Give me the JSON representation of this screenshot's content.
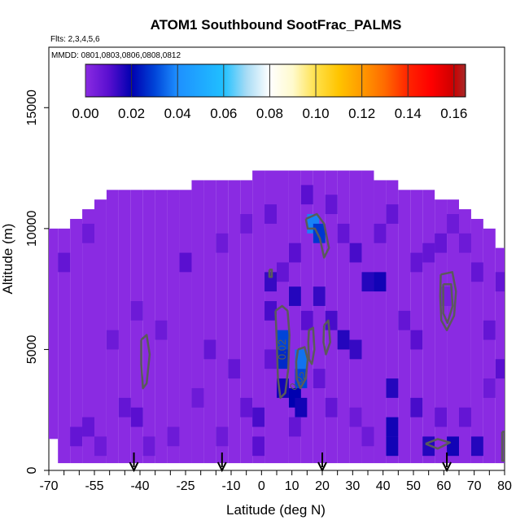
{
  "chart_data": {
    "type": "heatmap",
    "title": "ATOM1 Southbound SootFrac_PALMS",
    "flights_label": "Flts: 2,3,4,5,6",
    "dates_label": "MMDD: 0801,0803,0806,0808,0812",
    "xlabel": "Latitude (deg N)",
    "ylabel": "Altitude (m)",
    "xlim": [
      -70,
      80
    ],
    "ylim": [
      0,
      17500
    ],
    "x_ticks": [
      -70,
      -55,
      -40,
      -25,
      -10,
      0,
      10,
      20,
      30,
      40,
      50,
      60,
      70,
      80
    ],
    "y_ticks": [
      0,
      5000,
      10000,
      15000
    ],
    "colorbar": {
      "ticks": [
        "0.00",
        "0.02",
        "0.04",
        "0.06",
        "0.08",
        "0.10",
        "0.12",
        "0.14",
        "0.16"
      ],
      "range": [
        0,
        0.165
      ],
      "stops": [
        {
          "v": 0.0,
          "c": "#8a2be2"
        },
        {
          "v": 0.01,
          "c": "#5a0fd0"
        },
        {
          "v": 0.02,
          "c": "#0000b0"
        },
        {
          "v": 0.03,
          "c": "#0044d8"
        },
        {
          "v": 0.04,
          "c": "#1e90ff"
        },
        {
          "v": 0.06,
          "c": "#20c0ff"
        },
        {
          "v": 0.07,
          "c": "#a8dcf5"
        },
        {
          "v": 0.08,
          "c": "#ffffff"
        },
        {
          "v": 0.09,
          "c": "#fffacd"
        },
        {
          "v": 0.1,
          "c": "#ffe14a"
        },
        {
          "v": 0.11,
          "c": "#ffc400"
        },
        {
          "v": 0.12,
          "c": "#ff9a00"
        },
        {
          "v": 0.13,
          "c": "#ff6a00"
        },
        {
          "v": 0.14,
          "c": "#ff2400"
        },
        {
          "v": 0.15,
          "c": "#ff0000"
        },
        {
          "v": 0.16,
          "c": "#cc0000"
        },
        {
          "v": 0.165,
          "c": "#a52a2a"
        }
      ]
    },
    "profile_arrow_lats": [
      -42,
      -13,
      20,
      61
    ],
    "contour_labels": [
      {
        "text": "0.02",
        "lat": 8,
        "alt": 5000,
        "angle": -90
      },
      {
        "text": "0.02",
        "lat": 13,
        "alt": 3600,
        "angle": -50
      }
    ],
    "envelope": [
      {
        "lat": -69,
        "lo": 1300,
        "hi": 10000
      },
      {
        "lat": -65,
        "lo": 300,
        "hi": 10000
      },
      {
        "lat": -61,
        "lo": 300,
        "hi": 10400
      },
      {
        "lat": -57,
        "lo": 300,
        "hi": 10800
      },
      {
        "lat": -53,
        "lo": 300,
        "hi": 11200
      },
      {
        "lat": -49,
        "lo": 300,
        "hi": 11600
      },
      {
        "lat": -45,
        "lo": 300,
        "hi": 11600
      },
      {
        "lat": -41,
        "lo": 300,
        "hi": 11600
      },
      {
        "lat": -37,
        "lo": 300,
        "hi": 11600
      },
      {
        "lat": -33,
        "lo": 300,
        "hi": 11600
      },
      {
        "lat": -29,
        "lo": 300,
        "hi": 11600
      },
      {
        "lat": -25,
        "lo": 300,
        "hi": 11600
      },
      {
        "lat": -21,
        "lo": 300,
        "hi": 12000
      },
      {
        "lat": -17,
        "lo": 300,
        "hi": 12000
      },
      {
        "lat": -13,
        "lo": 300,
        "hi": 12000
      },
      {
        "lat": -9,
        "lo": 300,
        "hi": 12000
      },
      {
        "lat": -5,
        "lo": 300,
        "hi": 12000
      },
      {
        "lat": -1,
        "lo": 300,
        "hi": 12400
      },
      {
        "lat": 3,
        "lo": 300,
        "hi": 12400
      },
      {
        "lat": 7,
        "lo": 300,
        "hi": 12400
      },
      {
        "lat": 11,
        "lo": 300,
        "hi": 12400
      },
      {
        "lat": 15,
        "lo": 300,
        "hi": 12400
      },
      {
        "lat": 19,
        "lo": 300,
        "hi": 12400
      },
      {
        "lat": 23,
        "lo": 300,
        "hi": 12400
      },
      {
        "lat": 27,
        "lo": 300,
        "hi": 12400
      },
      {
        "lat": 31,
        "lo": 300,
        "hi": 12400
      },
      {
        "lat": 35,
        "lo": 300,
        "hi": 12400
      },
      {
        "lat": 39,
        "lo": 300,
        "hi": 12000
      },
      {
        "lat": 43,
        "lo": 300,
        "hi": 12000
      },
      {
        "lat": 47,
        "lo": 300,
        "hi": 11600
      },
      {
        "lat": 51,
        "lo": 300,
        "hi": 11600
      },
      {
        "lat": 55,
        "lo": 300,
        "hi": 11600
      },
      {
        "lat": 59,
        "lo": 300,
        "hi": 11200
      },
      {
        "lat": 63,
        "lo": 300,
        "hi": 11200
      },
      {
        "lat": 67,
        "lo": 300,
        "hi": 10800
      },
      {
        "lat": 71,
        "lo": 300,
        "hi": 10400
      },
      {
        "lat": 75,
        "lo": 300,
        "hi": 10000
      },
      {
        "lat": 79,
        "lo": 300,
        "hi": 9200
      }
    ],
    "cells": [
      {
        "lat": 13,
        "alt": 4200,
        "v": 0.042
      },
      {
        "lat": 13,
        "alt": 4600,
        "v": 0.036
      },
      {
        "lat": 13,
        "alt": 3800,
        "v": 0.03
      },
      {
        "lat": 7,
        "alt": 5000,
        "v": 0.032
      },
      {
        "lat": 7,
        "alt": 5400,
        "v": 0.03
      },
      {
        "lat": 7,
        "alt": 4600,
        "v": 0.026
      },
      {
        "lat": 17,
        "alt": 10200,
        "v": 0.038
      },
      {
        "lat": 19,
        "alt": 9800,
        "v": 0.028
      },
      {
        "lat": 61,
        "alt": 7200,
        "v": 0.004
      },
      {
        "lat": 55,
        "alt": 1000,
        "v": 0.016
      },
      {
        "lat": 63,
        "alt": 1000,
        "v": 0.018
      },
      {
        "lat": 71,
        "alt": 1000,
        "v": 0.016
      },
      {
        "lat": 7,
        "alt": 3400,
        "v": 0.018
      },
      {
        "lat": 11,
        "alt": 3000,
        "v": 0.02
      },
      {
        "lat": 13,
        "alt": 2600,
        "v": 0.018
      },
      {
        "lat": 3,
        "alt": 7800,
        "v": 0.014
      },
      {
        "lat": 3,
        "alt": 6600,
        "v": 0.012
      },
      {
        "lat": 11,
        "alt": 7200,
        "v": 0.016
      },
      {
        "lat": 19,
        "alt": 7200,
        "v": 0.014
      },
      {
        "lat": 23,
        "alt": 6200,
        "v": 0.012
      },
      {
        "lat": 27,
        "alt": 5400,
        "v": 0.016
      },
      {
        "lat": 31,
        "alt": 5000,
        "v": 0.014
      },
      {
        "lat": 35,
        "alt": 7800,
        "v": 0.016
      },
      {
        "lat": 39,
        "alt": 7800,
        "v": 0.018
      },
      {
        "lat": 43,
        "alt": 3400,
        "v": 0.016
      },
      {
        "lat": 43,
        "alt": 1800,
        "v": 0.018
      },
      {
        "lat": 43,
        "alt": 1000,
        "v": 0.018
      },
      {
        "lat": 47,
        "alt": 6200,
        "v": 0.008
      },
      {
        "lat": 51,
        "alt": 5400,
        "v": 0.01
      },
      {
        "lat": 51,
        "alt": 2600,
        "v": 0.012
      },
      {
        "lat": 59,
        "alt": 2200,
        "v": 0.008
      },
      {
        "lat": 67,
        "alt": 2200,
        "v": 0.008
      },
      {
        "lat": 75,
        "alt": 5800,
        "v": 0.008
      },
      {
        "lat": 79,
        "alt": 4200,
        "v": 0.01
      },
      {
        "lat": 79,
        "alt": 7800,
        "v": 0.008
      },
      {
        "lat": -1,
        "alt": 2200,
        "v": 0.012
      },
      {
        "lat": -1,
        "alt": 1000,
        "v": 0.01
      },
      {
        "lat": -5,
        "alt": 2600,
        "v": 0.008
      },
      {
        "lat": -9,
        "alt": 4200,
        "v": 0.008
      },
      {
        "lat": -17,
        "alt": 5000,
        "v": 0.008
      },
      {
        "lat": -25,
        "alt": 8600,
        "v": 0.01
      },
      {
        "lat": -41,
        "alt": 2200,
        "v": 0.01
      },
      {
        "lat": -45,
        "alt": 2600,
        "v": 0.008
      },
      {
        "lat": -57,
        "alt": 1800,
        "v": 0.008
      },
      {
        "lat": -61,
        "alt": 1400,
        "v": 0.008
      },
      {
        "lat": -33,
        "alt": 5800,
        "v": 0.006
      },
      {
        "lat": -49,
        "alt": 5400,
        "v": 0.006
      },
      {
        "lat": -65,
        "alt": 8600,
        "v": 0.008
      },
      {
        "lat": -13,
        "alt": 9400,
        "v": 0.006
      },
      {
        "lat": -5,
        "alt": 10200,
        "v": 0.006
      },
      {
        "lat": 3,
        "alt": 10600,
        "v": 0.008
      },
      {
        "lat": 15,
        "alt": 11400,
        "v": 0.01
      },
      {
        "lat": 23,
        "alt": 11000,
        "v": 0.008
      },
      {
        "lat": 27,
        "alt": 9800,
        "v": 0.008
      },
      {
        "lat": 31,
        "alt": 9000,
        "v": 0.012
      },
      {
        "lat": 39,
        "alt": 9800,
        "v": 0.008
      },
      {
        "lat": 43,
        "alt": 10600,
        "v": 0.008
      },
      {
        "lat": 51,
        "alt": 8600,
        "v": 0.008
      },
      {
        "lat": 55,
        "alt": 9000,
        "v": 0.008
      },
      {
        "lat": 59,
        "alt": 9400,
        "v": 0.008
      },
      {
        "lat": 63,
        "alt": 10200,
        "v": 0.006
      },
      {
        "lat": 67,
        "alt": 9400,
        "v": 0.006
      },
      {
        "lat": 71,
        "alt": 8200,
        "v": 0.008
      },
      {
        "lat": 75,
        "alt": 3400,
        "v": 0.006
      },
      {
        "lat": 35,
        "alt": 1400,
        "v": 0.006
      },
      {
        "lat": 31,
        "alt": 2200,
        "v": 0.006
      },
      {
        "lat": 23,
        "alt": 2600,
        "v": 0.008
      },
      {
        "lat": 19,
        "alt": 3800,
        "v": 0.008
      },
      {
        "lat": -21,
        "alt": 3000,
        "v": 0.006
      },
      {
        "lat": -29,
        "alt": 1400,
        "v": 0.006
      },
      {
        "lat": -37,
        "alt": 1000,
        "v": 0.006
      },
      {
        "lat": -53,
        "alt": 1000,
        "v": 0.006
      },
      {
        "lat": -13,
        "alt": 1400,
        "v": 0.006
      },
      {
        "lat": -41,
        "alt": 6600,
        "v": 0.006
      },
      {
        "lat": -57,
        "alt": 9800,
        "v": 0.006
      },
      {
        "lat": 11,
        "alt": 9000,
        "v": 0.01
      },
      {
        "lat": 7,
        "alt": 8200,
        "v": 0.008
      },
      {
        "lat": 15,
        "alt": 6200,
        "v": 0.01
      },
      {
        "lat": 11,
        "alt": 1800,
        "v": 0.008
      },
      {
        "lat": 3,
        "alt": 4600,
        "v": 0.008
      }
    ],
    "contours": [
      {
        "level": 0.02,
        "color": "#5a5a5a",
        "points": [
          [
            4.6,
            6600
          ],
          [
            6.8,
            6800
          ],
          [
            8.6,
            6600
          ],
          [
            9.2,
            5600
          ],
          [
            8.8,
            4200
          ],
          [
            7.8,
            3200
          ],
          [
            6.2,
            3000
          ],
          [
            5.4,
            3800
          ],
          [
            5.0,
            5400
          ],
          [
            4.6,
            6600
          ]
        ]
      },
      {
        "level": 0.02,
        "color": "#5a5a5a",
        "points": [
          [
            12.0,
            5000
          ],
          [
            14.2,
            5100
          ],
          [
            15.2,
            4600
          ],
          [
            14.6,
            3800
          ],
          [
            12.8,
            3400
          ],
          [
            11.6,
            3800
          ],
          [
            11.4,
            4500
          ],
          [
            12.0,
            5000
          ]
        ]
      },
      {
        "level": 0.02,
        "color": "#5a5a5a",
        "points": [
          [
            15.6,
            5800
          ],
          [
            17.0,
            5900
          ],
          [
            17.4,
            5000
          ],
          [
            16.6,
            4400
          ],
          [
            15.6,
            4600
          ],
          [
            15.4,
            5300
          ],
          [
            15.6,
            5800
          ]
        ]
      },
      {
        "level": 0.02,
        "color": "#5a5a5a",
        "points": [
          [
            14.6,
            10400
          ],
          [
            18.2,
            10600
          ],
          [
            20.6,
            10200
          ],
          [
            22.2,
            9200
          ],
          [
            20.6,
            8800
          ],
          [
            19.2,
            9600
          ],
          [
            17.6,
            10000
          ],
          [
            15.2,
            10000
          ],
          [
            14.6,
            10400
          ]
        ]
      },
      {
        "level": 0.02,
        "color": "#5a5a5a",
        "points": [
          [
            -39.6,
            5400
          ],
          [
            -37.8,
            5600
          ],
          [
            -36.8,
            4800
          ],
          [
            -37.8,
            3600
          ],
          [
            -39.0,
            3400
          ],
          [
            -39.6,
            4400
          ],
          [
            -39.6,
            5400
          ]
        ]
      },
      {
        "level": 0.02,
        "color": "#5a5a5a",
        "points": [
          [
            20.6,
            6000
          ],
          [
            22.0,
            6200
          ],
          [
            22.6,
            5300
          ],
          [
            21.2,
            4800
          ],
          [
            20.4,
            5300
          ],
          [
            20.6,
            6000
          ]
        ]
      },
      {
        "level": 0.02,
        "color": "#5a5a5a",
        "points": [
          [
            59.0,
            8100
          ],
          [
            62.8,
            8200
          ],
          [
            64.0,
            7400
          ],
          [
            63.4,
            6400
          ],
          [
            61.0,
            5800
          ],
          [
            59.2,
            6200
          ],
          [
            58.8,
            7200
          ],
          [
            59.0,
            8100
          ]
        ]
      },
      {
        "level": 0.02,
        "color": "#5a5a5a",
        "points": [
          [
            59.8,
            7700
          ],
          [
            62.4,
            7700
          ],
          [
            62.9,
            6800
          ],
          [
            61.2,
            6100
          ],
          [
            59.8,
            6500
          ],
          [
            59.8,
            7700
          ]
        ]
      },
      {
        "level": 0.02,
        "color": "#5a5a5a",
        "points": [
          [
            54.0,
            1100
          ],
          [
            58.0,
            1300
          ],
          [
            62.0,
            1150
          ],
          [
            58.0,
            900
          ],
          [
            54.0,
            1100
          ]
        ]
      },
      {
        "level": 0.02,
        "color": "#5a5a5a",
        "points": [
          [
            2.6,
            8300
          ],
          [
            3.4,
            8300
          ],
          [
            3.4,
            8000
          ],
          [
            2.6,
            8000
          ],
          [
            2.6,
            8300
          ]
        ]
      },
      {
        "level": 0.02,
        "color": "#5a5a5a",
        "points": [
          [
            79.2,
            1600
          ],
          [
            80.0,
            1600
          ],
          [
            80.0,
            400
          ],
          [
            79.2,
            400
          ],
          [
            79.2,
            1600
          ]
        ]
      }
    ]
  }
}
